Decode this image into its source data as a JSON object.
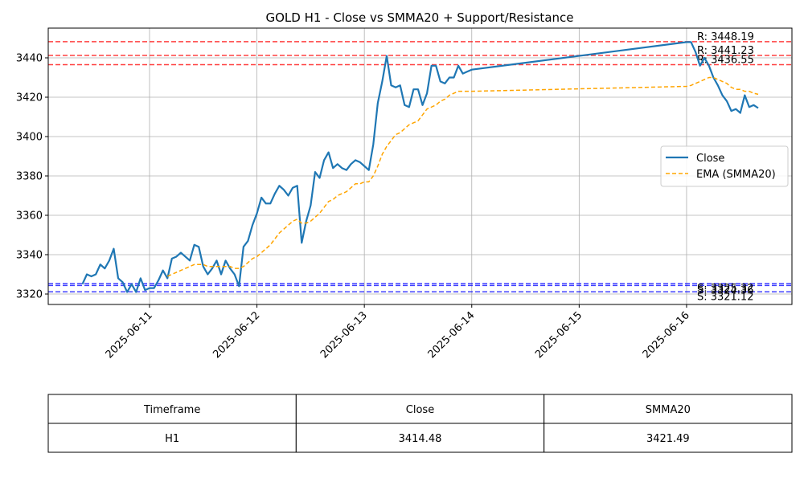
{
  "chart_data": {
    "type": "line",
    "title": "GOLD H1 - Close vs SMMA20 + Support/Resistance",
    "x": [
      20249.375,
      20249.4167,
      20249.4583,
      20249.5,
      20249.5417,
      20249.5833,
      20249.625,
      20249.6667,
      20249.7083,
      20249.75,
      20249.7917,
      20249.8333,
      20249.875,
      20249.9167,
      20249.9583,
      20250,
      20250.0417,
      20250.0833,
      20250.125,
      20250.1667,
      20250.2083,
      20250.25,
      20250.2917,
      20250.3333,
      20250.375,
      20250.4167,
      20250.4583,
      20250.5,
      20250.5417,
      20250.5833,
      20250.625,
      20250.6667,
      20250.7083,
      20250.75,
      20250.7917,
      20250.8333,
      20250.875,
      20250.9167,
      20250.9583,
      20251,
      20251.0417,
      20251.0833,
      20251.125,
      20251.1667,
      20251.2083,
      20251.25,
      20251.2917,
      20251.3333,
      20251.375,
      20251.4167,
      20251.4583,
      20251.5,
      20251.5417,
      20251.5833,
      20251.625,
      20251.6667,
      20251.7083,
      20251.75,
      20251.7917,
      20251.8333,
      20251.875,
      20251.9167,
      20251.9583,
      20252,
      20252.0417,
      20252.0833,
      20252.125,
      20252.1667,
      20252.2083,
      20252.25,
      20252.2917,
      20252.3333,
      20252.375,
      20252.4167,
      20252.4583,
      20252.5,
      20252.5417,
      20252.5833,
      20252.625,
      20252.6667,
      20252.7083,
      20252.75,
      20252.7917,
      20252.8333,
      20252.875,
      20252.9167,
      20252.9583,
      20253,
      20255,
      20255.0417,
      20255.0833,
      20255.125,
      20255.1667,
      20255.2083,
      20255.25,
      20255.2917,
      20255.3333,
      20255.375,
      20255.4167,
      20255.4583,
      20255.5,
      20255.5417,
      20255.5833,
      20255.625,
      20255.6667
    ],
    "series": [
      {
        "name": "Close",
        "color": "#1f77b4",
        "style": "solid",
        "values": [
          3325,
          3330,
          3329,
          3330,
          3335,
          3333,
          3337,
          3343,
          3328,
          3326,
          3321,
          3325,
          3321,
          3328,
          3322,
          3323,
          3323,
          3327,
          3332,
          3328,
          3338,
          3339,
          3341,
          3339,
          3337,
          3345,
          3344,
          3334,
          3330,
          3333,
          3337,
          3330,
          3337,
          3333,
          3330,
          3324,
          3344,
          3347,
          3355,
          3361,
          3369,
          3366,
          3366,
          3371,
          3375,
          3373,
          3370,
          3374,
          3375,
          3346,
          3357,
          3365,
          3382,
          3379,
          3388,
          3392,
          3384,
          3386,
          3384,
          3383,
          3386,
          3388,
          3387,
          3385,
          3383,
          3396,
          3417,
          3428,
          3441,
          3426,
          3425,
          3426,
          3416,
          3415,
          3424,
          3424,
          3416,
          3422,
          3436,
          3436,
          3428,
          3427,
          3430,
          3430,
          3436,
          3432,
          3433,
          3434,
          3448,
          3448,
          3443,
          3436,
          3440,
          3436,
          3430,
          3426,
          3421,
          3418,
          3413,
          3414,
          3412,
          3421,
          3415,
          3416,
          3414.48
        ]
      },
      {
        "name": "EMA (SMMA20)",
        "color": "#ffa500",
        "style": "dashed",
        "values": [
          null,
          null,
          null,
          null,
          null,
          null,
          null,
          null,
          null,
          null,
          null,
          null,
          null,
          null,
          null,
          null,
          null,
          null,
          null,
          3329,
          3330,
          3331,
          3332,
          3333,
          3334,
          3335,
          3335,
          3335,
          3334,
          3334,
          3334,
          3334,
          3334,
          3334,
          3333,
          3333,
          3334,
          3336,
          3338,
          3339,
          3341,
          3343,
          3345,
          3348,
          3351,
          3353,
          3355,
          3357,
          3358,
          3356,
          3356,
          3357,
          3359,
          3361,
          3364,
          3367,
          3368,
          3370,
          3371,
          3372,
          3374,
          3376,
          3376,
          3377,
          3377,
          3380,
          3385,
          3391,
          3395,
          3398,
          3401,
          3402,
          3404,
          3406,
          3407,
          3408,
          3411,
          3414,
          3415,
          3416,
          3418,
          3419,
          3421,
          3422,
          3423,
          3423,
          3423,
          3423,
          3425.5,
          3426,
          3427,
          3428,
          3429,
          3430,
          3430,
          3429,
          3428,
          3427,
          3425,
          3424,
          3424,
          3423,
          3423,
          3422,
          3421.49
        ]
      }
    ],
    "levels": [
      {
        "value": 3448.19,
        "label": "R: 3448.19",
        "color": "#ff0000"
      },
      {
        "value": 3441.23,
        "label": "R: 3441.23",
        "color": "#ff0000"
      },
      {
        "value": 3436.55,
        "label": "R: 3436.55",
        "color": "#ff0000"
      },
      {
        "value": 3325.32,
        "label": "S: 3325.32",
        "color": "#0000ff"
      },
      {
        "value": 3324.36,
        "label": "S: 3324.36",
        "color": "#0000ff"
      },
      {
        "value": 3321.12,
        "label": "S: 3321.12",
        "color": "#0000ff"
      }
    ],
    "xlim": [
      20249.057,
      20255.981
    ],
    "xticks": [
      {
        "value": 20250,
        "label": "2025-06-11"
      },
      {
        "value": 20251,
        "label": "2025-06-12"
      },
      {
        "value": 20252,
        "label": "2025-06-13"
      },
      {
        "value": 20253,
        "label": "2025-06-14"
      },
      {
        "value": 20254,
        "label": "2025-06-15"
      },
      {
        "value": 20255,
        "label": "2025-06-16"
      }
    ],
    "ylim": [
      3314.7,
      3455.1
    ],
    "yticks": [
      3320,
      3340,
      3360,
      3380,
      3400,
      3420,
      3440
    ],
    "grid": true,
    "legend": "center right"
  },
  "table": {
    "header": [
      "Timeframe",
      "Close",
      "SMMA20"
    ],
    "rows": [
      [
        "H1",
        "3414.48",
        "3421.49"
      ]
    ]
  }
}
